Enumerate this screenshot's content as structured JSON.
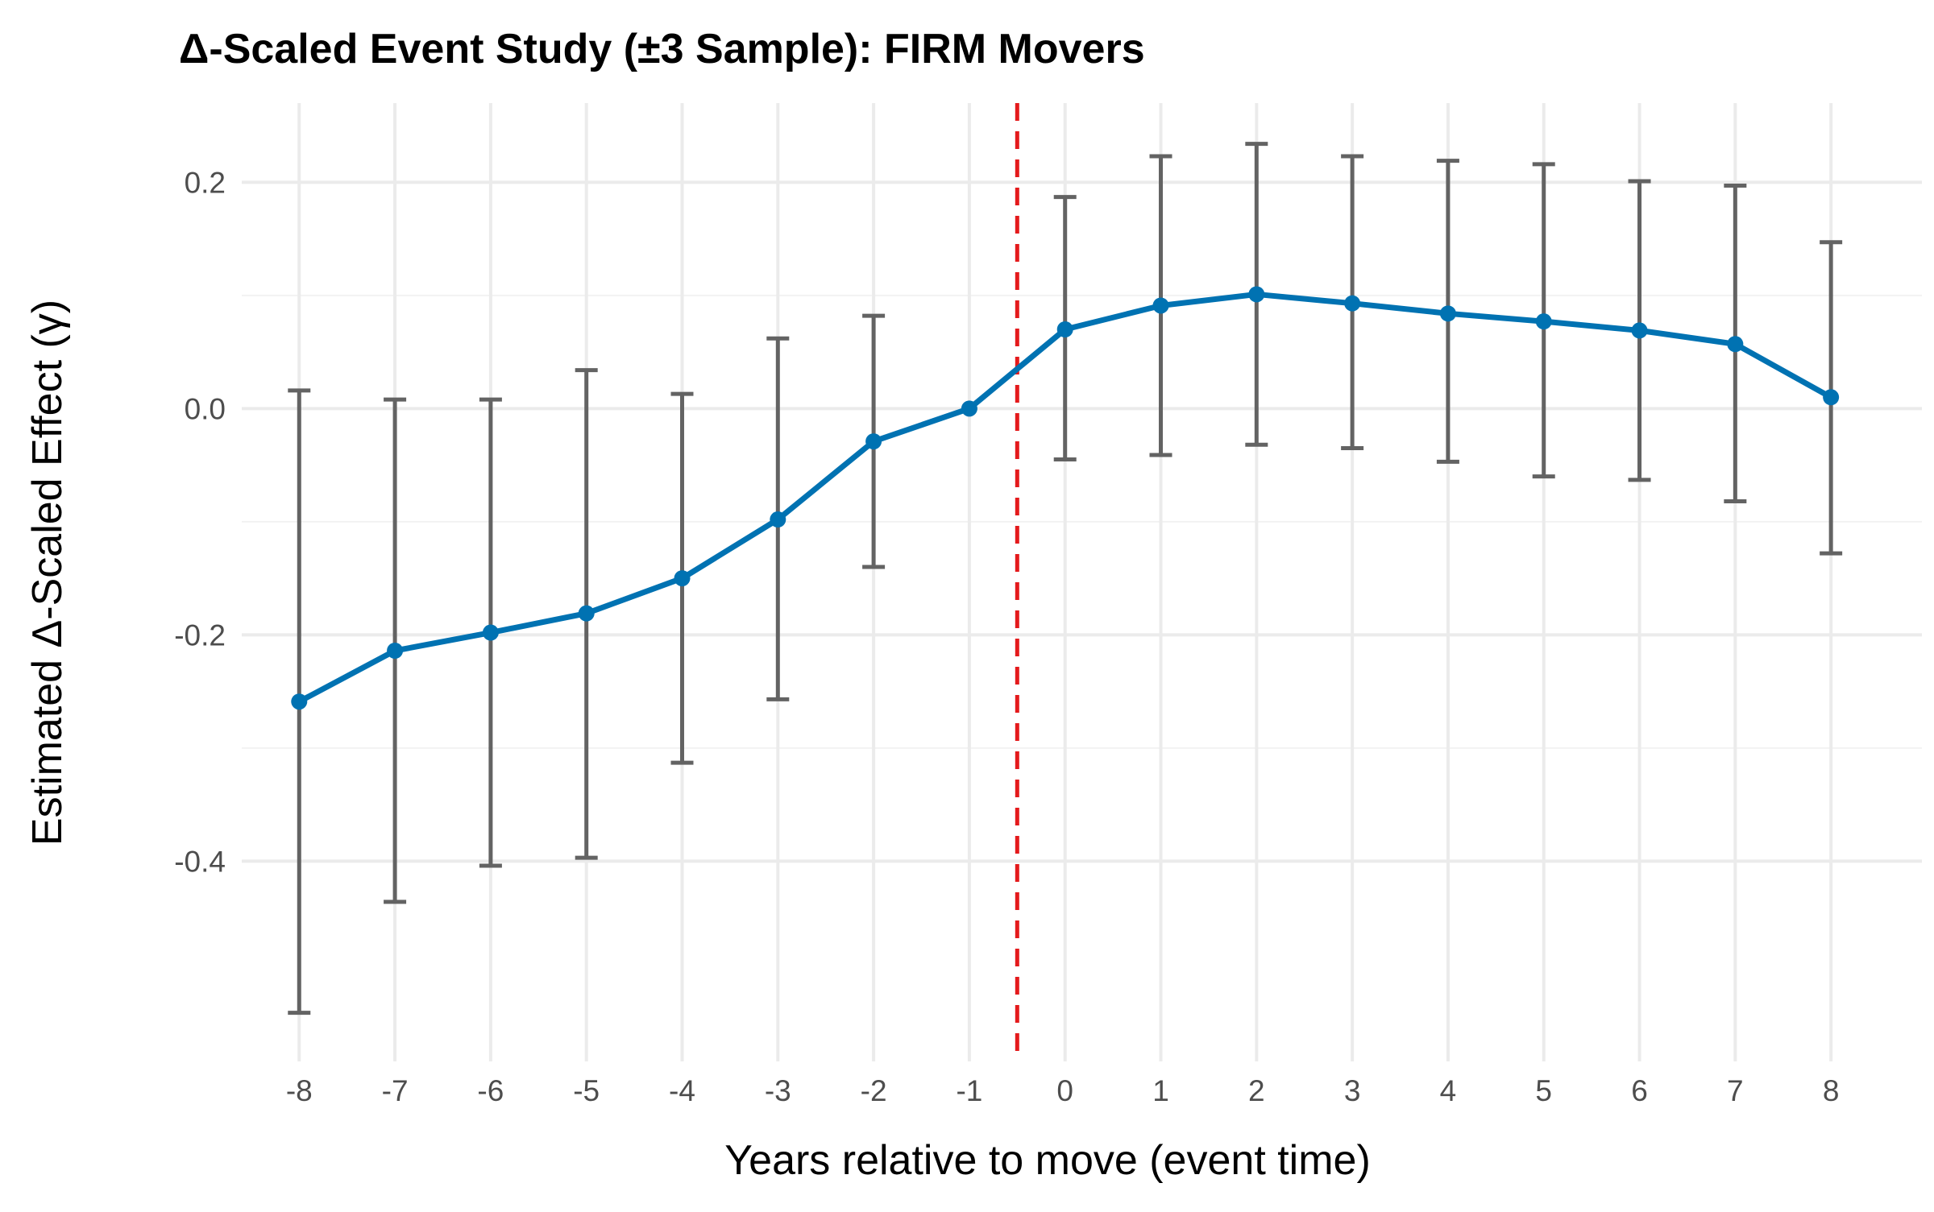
{
  "chart_data": {
    "type": "line",
    "title": "Δ-Scaled Event Study (±3 Sample): FIRM Movers",
    "xlabel": "Years relative to move (event time)",
    "ylabel": "Estimated Δ-Scaled Effect (γ)",
    "x": [
      -8,
      -7,
      -6,
      -5,
      -4,
      -3,
      -2,
      -1,
      0,
      1,
      2,
      3,
      4,
      5,
      6,
      7,
      8
    ],
    "x_tick_labels": [
      "-8",
      "-7",
      "-6",
      "-5",
      "-4",
      "-3",
      "-2",
      "-1",
      "0",
      "1",
      "2",
      "3",
      "4",
      "5",
      "6",
      "7",
      "8"
    ],
    "y_ticks": [
      -0.4,
      -0.2,
      0.0,
      0.2
    ],
    "y_tick_labels": [
      "-0.4",
      "-0.2",
      "0.0",
      "0.2"
    ],
    "xlim": [
      -8.6,
      8.95
    ],
    "ylim": [
      -0.577,
      0.27
    ],
    "grid": true,
    "reference_line": {
      "x": -0.5,
      "style": "dashed",
      "color": "#e41a1c"
    },
    "series": [
      {
        "color": "#0072b2",
        "values": [
          -0.259,
          -0.214,
          -0.198,
          -0.181,
          -0.15,
          -0.098,
          -0.029,
          0.0,
          0.07,
          0.091,
          0.101,
          0.093,
          0.084,
          0.077,
          0.069,
          0.057,
          0.01
        ],
        "ci_lower": [
          -0.534,
          -0.436,
          -0.404,
          -0.397,
          -0.313,
          -0.257,
          -0.14,
          null,
          -0.045,
          -0.041,
          -0.032,
          -0.035,
          -0.047,
          -0.06,
          -0.063,
          -0.082,
          -0.128
        ],
        "ci_upper": [
          0.016,
          0.008,
          0.008,
          0.034,
          0.013,
          0.062,
          0.082,
          null,
          0.187,
          0.223,
          0.234,
          0.223,
          0.219,
          0.216,
          0.201,
          0.197,
          0.147
        ]
      }
    ],
    "errorbar_color": "#636363"
  }
}
